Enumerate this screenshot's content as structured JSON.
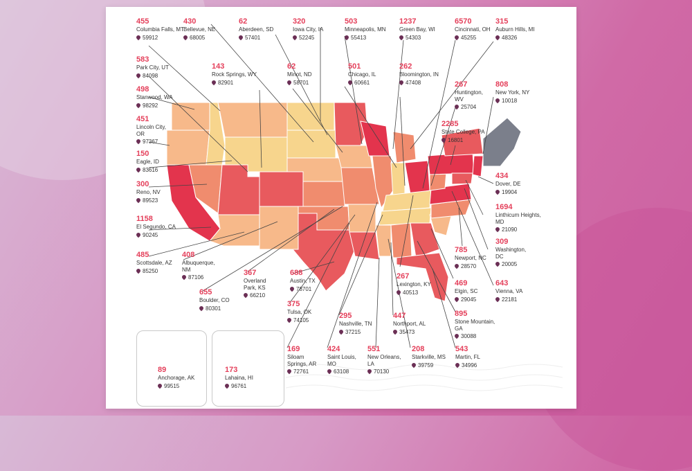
{
  "colors": {
    "background": "#d28fbf",
    "card": "#ffffff",
    "accent_number": "#e43f5a",
    "pin": "#6b2f55",
    "scale": [
      "#f7d58d",
      "#f7b98a",
      "#f08c6e",
      "#e85a5e",
      "#e3344d",
      "#7b7f8b"
    ]
  },
  "labels": [
    {
      "id": "columbia-falls",
      "num": "455",
      "name": "Columbia Falls, MT",
      "zip": "59912"
    },
    {
      "id": "bellevue",
      "num": "430",
      "name": "Bellevue, NE",
      "zip": "68005"
    },
    {
      "id": "aberdeen",
      "num": "62",
      "name": "Aberdeen, SD",
      "zip": "57401"
    },
    {
      "id": "iowa-city",
      "num": "320",
      "name": "Iowa City, IA",
      "zip": "52245"
    },
    {
      "id": "minneapolis",
      "num": "503",
      "name": "Minneapolis, MN",
      "zip": "55413"
    },
    {
      "id": "green-bay",
      "num": "1237",
      "name": "Green Bay, WI",
      "zip": "54303"
    },
    {
      "id": "cincinnati",
      "num": "6570",
      "name": "Cincinnati, OH",
      "zip": "45255"
    },
    {
      "id": "auburn-hills",
      "num": "315",
      "name": "Auburn Hills, MI",
      "zip": "48326"
    },
    {
      "id": "park-city",
      "num": "583",
      "name": "Park City, UT",
      "zip": "84098"
    },
    {
      "id": "rock-springs",
      "num": "143",
      "name": "Rock Springs, WY",
      "zip": "82901"
    },
    {
      "id": "minot",
      "num": "62",
      "name": "Minot, ND",
      "zip": "58701"
    },
    {
      "id": "chicago",
      "num": "501",
      "name": "Chicago, IL",
      "zip": "60661"
    },
    {
      "id": "bloomington",
      "num": "262",
      "name": "Bloomington, IN",
      "zip": "47408"
    },
    {
      "id": "stanwood",
      "num": "498",
      "name": "Stanwood, WA",
      "zip": "98292"
    },
    {
      "id": "huntington",
      "num": "267",
      "name": "Huntington, WV",
      "zip": "25704"
    },
    {
      "id": "new-york",
      "num": "808",
      "name": "New York, NY",
      "zip": "10018"
    },
    {
      "id": "lincoln-city",
      "num": "451",
      "name": "Lincoln City, OR",
      "zip": "97367"
    },
    {
      "id": "state-college",
      "num": "2285",
      "name": "State College, PA",
      "zip": "16801"
    },
    {
      "id": "eagle",
      "num": "150",
      "name": "Eagle, ID",
      "zip": "83616"
    },
    {
      "id": "dover",
      "num": "434",
      "name": "Dover, DE",
      "zip": "19904"
    },
    {
      "id": "reno",
      "num": "300",
      "name": "Reno, NV",
      "zip": "89523"
    },
    {
      "id": "linthicum",
      "num": "1694",
      "name": "Linthicum Heights, MD",
      "zip": "21090"
    },
    {
      "id": "el-segundo",
      "num": "1158",
      "name": "El Segundo, CA",
      "zip": "90245"
    },
    {
      "id": "washington",
      "num": "309",
      "name": "Washington, DC",
      "zip": "20005"
    },
    {
      "id": "scottsdale",
      "num": "485",
      "name": "Scottsdale, AZ",
      "zip": "85250"
    },
    {
      "id": "albuquerque",
      "num": "408",
      "name": "Albuquerque, NM",
      "zip": "87106"
    },
    {
      "id": "newport",
      "num": "785",
      "name": "Newport, NC",
      "zip": "28570"
    },
    {
      "id": "overland-park",
      "num": "367",
      "name": "Overland Park, KS",
      "zip": "66210"
    },
    {
      "id": "austin",
      "num": "688",
      "name": "Austin, TX",
      "zip": "78701"
    },
    {
      "id": "lexington",
      "num": "267",
      "name": "Lexington, KY",
      "zip": "40513"
    },
    {
      "id": "elgin",
      "num": "469",
      "name": "Elgin, SC",
      "zip": "29045"
    },
    {
      "id": "vienna",
      "num": "643",
      "name": "Vienna, VA",
      "zip": "22181"
    },
    {
      "id": "boulder",
      "num": "655",
      "name": "Boulder, CO",
      "zip": "80301"
    },
    {
      "id": "tulsa",
      "num": "375",
      "name": "Tulsa, OK",
      "zip": "74105"
    },
    {
      "id": "stone-mountain",
      "num": "895",
      "name": "Stone Mountain, GA",
      "zip": "30088"
    },
    {
      "id": "nashville",
      "num": "295",
      "name": "Nashville, TN",
      "zip": "37215"
    },
    {
      "id": "northport",
      "num": "447",
      "name": "Northport, AL",
      "zip": "35473"
    },
    {
      "id": "siloam-springs",
      "num": "169",
      "name": "Siloam Springs, AR",
      "zip": "72761"
    },
    {
      "id": "saint-louis",
      "num": "424",
      "name": "Saint Louis, MO",
      "zip": "63108"
    },
    {
      "id": "new-orleans",
      "num": "551",
      "name": "New Orleans, LA",
      "zip": "70130"
    },
    {
      "id": "starkville",
      "num": "208",
      "name": "Starkville, MS",
      "zip": "39759"
    },
    {
      "id": "martin",
      "num": "543",
      "name": "Martin, FL",
      "zip": "34996"
    },
    {
      "id": "anchorage",
      "num": "89",
      "name": "Anchorage, AK",
      "zip": "99515"
    },
    {
      "id": "lahaina",
      "num": "173",
      "name": "Lahaina, HI",
      "zip": "96761"
    }
  ]
}
